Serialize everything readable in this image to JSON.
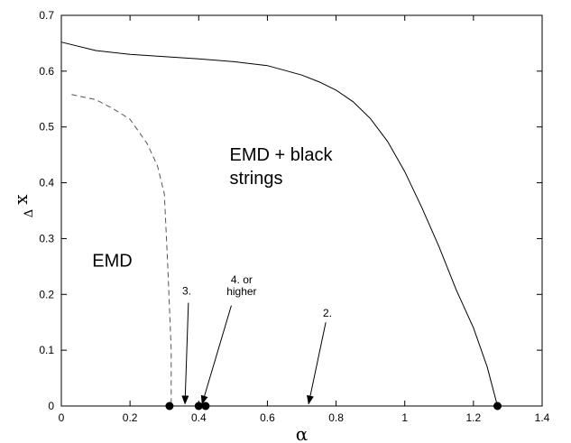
{
  "chart_data": {
    "type": "line",
    "title": "",
    "xlabel": "α",
    "ylabel": "x",
    "ylabel_subscript": "Δ",
    "xlim": [
      0,
      1.4
    ],
    "ylim": [
      0,
      0.7
    ],
    "xticks": [
      0,
      0.2,
      0.4,
      0.6,
      0.8,
      1,
      1.2,
      1.4
    ],
    "yticks": [
      0,
      0.1,
      0.2,
      0.3,
      0.4,
      0.5,
      0.6,
      0.7
    ],
    "xtick_labels": [
      "0",
      "0.2",
      "0.4",
      "0.6",
      "0.8",
      "1",
      "1.2",
      "1.4"
    ],
    "ytick_labels": [
      "0",
      "0.1",
      "0.2",
      "0.3",
      "0.4",
      "0.5",
      "0.6",
      "0.7"
    ],
    "grid": false,
    "series": [
      {
        "style": "solid",
        "color": "#000000",
        "x": [
          0,
          0.1,
          0.2,
          0.3,
          0.4,
          0.5,
          0.6,
          0.7,
          0.75,
          0.8,
          0.85,
          0.9,
          0.95,
          1.0,
          1.05,
          1.1,
          1.15,
          1.2,
          1.24,
          1.27
        ],
        "y": [
          0.652,
          0.637,
          0.63,
          0.626,
          0.622,
          0.617,
          0.61,
          0.593,
          0.581,
          0.566,
          0.545,
          0.515,
          0.474,
          0.42,
          0.355,
          0.285,
          0.208,
          0.14,
          0.07,
          0
        ]
      },
      {
        "style": "dashed",
        "color": "#555555",
        "x": [
          0.03,
          0.1,
          0.15,
          0.2,
          0.25,
          0.28,
          0.3,
          0.31,
          0.32,
          0.32
        ],
        "y": [
          0.558,
          0.549,
          0.533,
          0.514,
          0.47,
          0.43,
          0.38,
          0.25,
          0.1,
          0
        ]
      }
    ],
    "points": [
      {
        "x": 0.315,
        "y": 0
      },
      {
        "x": 0.4,
        "y": 0
      },
      {
        "x": 0.42,
        "y": 0
      },
      {
        "x": 1.27,
        "y": 0
      }
    ],
    "region_labels": [
      {
        "lines": [
          "EMD + black",
          "strings"
        ],
        "x": 0.49,
        "y": 0.44
      },
      {
        "lines": [
          "EMD"
        ],
        "x": 0.09,
        "y": 0.25
      }
    ],
    "annotations": [
      {
        "lines": [
          "3."
        ],
        "label_x": 0.365,
        "label_y": 0.2,
        "arrow_from": [
          0.37,
          0.185
        ],
        "arrow_to": [
          0.36,
          0.004
        ]
      },
      {
        "lines": [
          "4. or",
          "higher"
        ],
        "label_x": 0.525,
        "label_y": 0.22,
        "arrow_from": [
          0.495,
          0.18
        ],
        "arrow_to": [
          0.41,
          0.004
        ]
      },
      {
        "lines": [
          "2."
        ],
        "label_x": 0.775,
        "label_y": 0.16,
        "arrow_from": [
          0.77,
          0.15
        ],
        "arrow_to": [
          0.72,
          0.004
        ]
      }
    ]
  }
}
